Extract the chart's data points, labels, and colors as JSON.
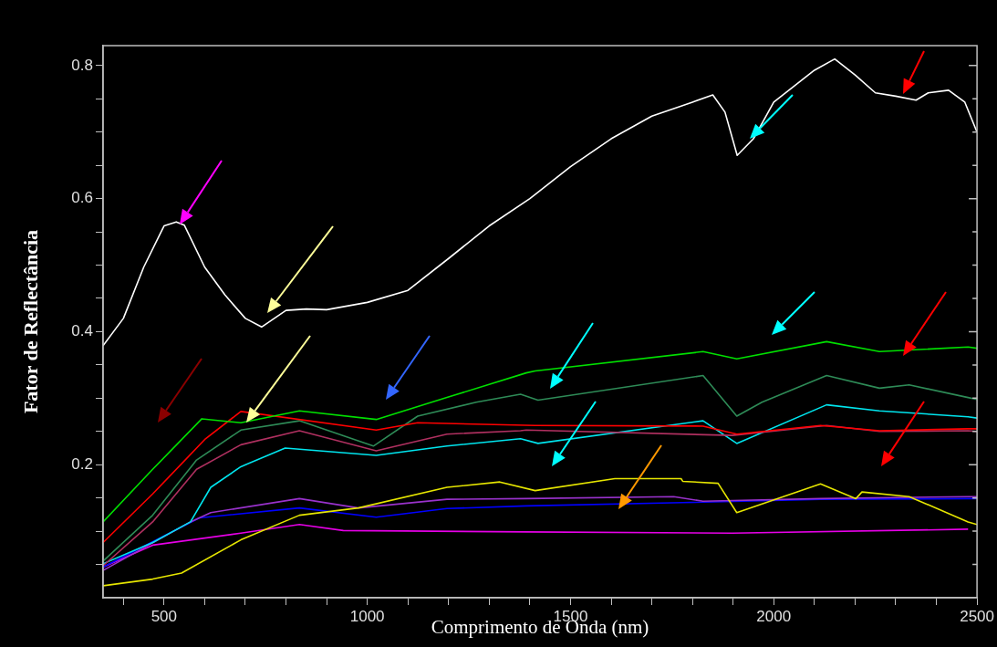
{
  "chart_data": {
    "type": "line",
    "xlabel": "Comprimento de Onda (nm)",
    "ylabel": "Fator de Reflectância",
    "xlim": [
      350,
      2500
    ],
    "ylim": [
      0,
      0.83
    ],
    "xticks": [
      {
        "value": 400,
        "label": null
      },
      500,
      {
        "value": 600,
        "label": null
      },
      {
        "value": 700,
        "label": null
      },
      {
        "value": 800,
        "label": null
      },
      {
        "value": 900,
        "label": null
      },
      1000,
      {
        "value": 1100,
        "label": null
      },
      {
        "value": 1200,
        "label": null
      },
      {
        "value": 1300,
        "label": null
      },
      {
        "value": 1400,
        "label": null
      },
      1500,
      {
        "value": 1600,
        "label": null
      },
      {
        "value": 1700,
        "label": null
      },
      {
        "value": 1800,
        "label": null
      },
      {
        "value": 1900,
        "label": null
      },
      2000,
      {
        "value": 2100,
        "label": null
      },
      {
        "value": 2200,
        "label": null
      },
      {
        "value": 2300,
        "label": null
      },
      {
        "value": 2400,
        "label": null
      },
      2500
    ],
    "yticks": [
      {
        "value": 0.05,
        "label": null
      },
      {
        "value": 0.1,
        "label": null
      },
      {
        "value": 0.15,
        "label": null
      },
      0.2,
      {
        "value": 0.25,
        "label": null
      },
      {
        "value": 0.3,
        "label": null
      },
      {
        "value": 0.35,
        "label": null
      },
      0.4,
      {
        "value": 0.45,
        "label": null
      },
      {
        "value": 0.5,
        "label": null
      },
      {
        "value": 0.55,
        "label": null
      },
      0.6,
      {
        "value": 0.65,
        "label": null
      },
      {
        "value": 0.7,
        "label": null
      },
      {
        "value": 0.75,
        "label": null
      },
      0.8
    ],
    "legend": false,
    "marker": "none",
    "line_style": "solid",
    "series": [
      {
        "color": "#ffffff",
        "x": [
          350,
          400,
          450,
          500,
          530,
          550,
          600,
          650,
          700,
          740,
          800,
          850,
          900,
          1000,
          1100,
          1200,
          1300,
          1400,
          1500,
          1600,
          1700,
          1800,
          1850,
          1880,
          1910,
          1950,
          2000,
          2100,
          2150,
          2200,
          2250,
          2300,
          2350,
          2380,
          2430,
          2470,
          2500
        ],
        "values": [
          0.379,
          0.42,
          0.497,
          0.559,
          0.565,
          0.56,
          0.497,
          0.455,
          0.42,
          0.407,
          0.432,
          0.434,
          0.433,
          0.444,
          0.462,
          0.51,
          0.559,
          0.6,
          0.648,
          0.69,
          0.724,
          0.745,
          0.756,
          0.73,
          0.665,
          0.69,
          0.745,
          0.793,
          0.81,
          0.786,
          0.759,
          0.754,
          0.748,
          0.759,
          0.763,
          0.745,
          0.7
        ]
      },
      {
        "color": "#00e000",
        "x": [
          350,
          472,
          593,
          689,
          833,
          1022,
          1196,
          1391,
          1413,
          1826,
          1909,
          2130,
          2260,
          2478,
          2500
        ],
        "values": [
          0.114,
          0.193,
          0.269,
          0.263,
          0.281,
          0.268,
          0.301,
          0.338,
          0.341,
          0.37,
          0.359,
          0.385,
          0.37,
          0.377,
          0.375
        ]
      },
      {
        "color": "#ff0000",
        "x": [
          350,
          472,
          602,
          689,
          1022,
          1124,
          1413,
          1826,
          1909,
          2115,
          2260,
          2478,
          2500
        ],
        "values": [
          0.083,
          0.156,
          0.239,
          0.28,
          0.252,
          0.263,
          0.259,
          0.258,
          0.246,
          0.259,
          0.251,
          0.254,
          0.254
        ]
      },
      {
        "color": "#2e8b57",
        "x": [
          350,
          472,
          580,
          689,
          833,
          1015,
          1124,
          1268,
          1377,
          1420,
          1826,
          1909,
          1971,
          2130,
          2260,
          2333,
          2478,
          2500
        ],
        "values": [
          0.055,
          0.124,
          0.207,
          0.252,
          0.266,
          0.228,
          0.273,
          0.294,
          0.306,
          0.297,
          0.334,
          0.273,
          0.294,
          0.334,
          0.315,
          0.32,
          0.301,
          0.298
        ]
      },
      {
        "color": "#b03060",
        "x": [
          350,
          472,
          580,
          689,
          833,
          1022,
          1196,
          1377,
          1391,
          1898,
          2130,
          2260,
          2478,
          2500
        ],
        "values": [
          0.048,
          0.114,
          0.193,
          0.23,
          0.251,
          0.221,
          0.246,
          0.251,
          0.252,
          0.244,
          0.259,
          0.25,
          0.251,
          0.25
        ]
      },
      {
        "color": "#00e5ee",
        "x": [
          350,
          472,
          565,
          615,
          689,
          798,
          1022,
          1196,
          1377,
          1420,
          1826,
          1909,
          2130,
          2260,
          2478,
          2500
        ],
        "values": [
          0.051,
          0.083,
          0.114,
          0.166,
          0.197,
          0.225,
          0.214,
          0.228,
          0.239,
          0.232,
          0.266,
          0.232,
          0.29,
          0.281,
          0.272,
          0.27
        ]
      },
      {
        "color": "#e6e600",
        "x": [
          350,
          472,
          543,
          689,
          833,
          978,
          1196,
          1326,
          1413,
          1609,
          1772,
          1776,
          1863,
          1909,
          2115,
          2202,
          2217,
          2333,
          2478,
          2500
        ],
        "values": [
          0.018,
          0.028,
          0.037,
          0.087,
          0.124,
          0.135,
          0.166,
          0.174,
          0.161,
          0.179,
          0.179,
          0.175,
          0.172,
          0.128,
          0.171,
          0.149,
          0.159,
          0.152,
          0.114,
          0.11
        ]
      },
      {
        "color": "#9932cc",
        "x": [
          350,
          565,
          615,
          833,
          978,
          1196,
          1391,
          1754,
          1826,
          2115,
          2478,
          2500
        ],
        "values": [
          0.041,
          0.114,
          0.128,
          0.149,
          0.135,
          0.148,
          0.149,
          0.152,
          0.145,
          0.149,
          0.152,
          0.152
        ]
      },
      {
        "color": "#0000ff",
        "x": [
          350,
          587,
          833,
          1022,
          1196,
          1391,
          1776,
          2115,
          2478,
          2500
        ],
        "values": [
          0.046,
          0.12,
          0.135,
          0.121,
          0.134,
          0.138,
          0.143,
          0.148,
          0.149,
          0.149
        ]
      },
      {
        "color": "#e600e6",
        "x": [
          350,
          472,
          689,
          833,
          941,
          1391,
          1898,
          2478
        ],
        "values": [
          0.046,
          0.079,
          0.097,
          0.11,
          0.101,
          0.099,
          0.097,
          0.103
        ]
      }
    ]
  }
}
